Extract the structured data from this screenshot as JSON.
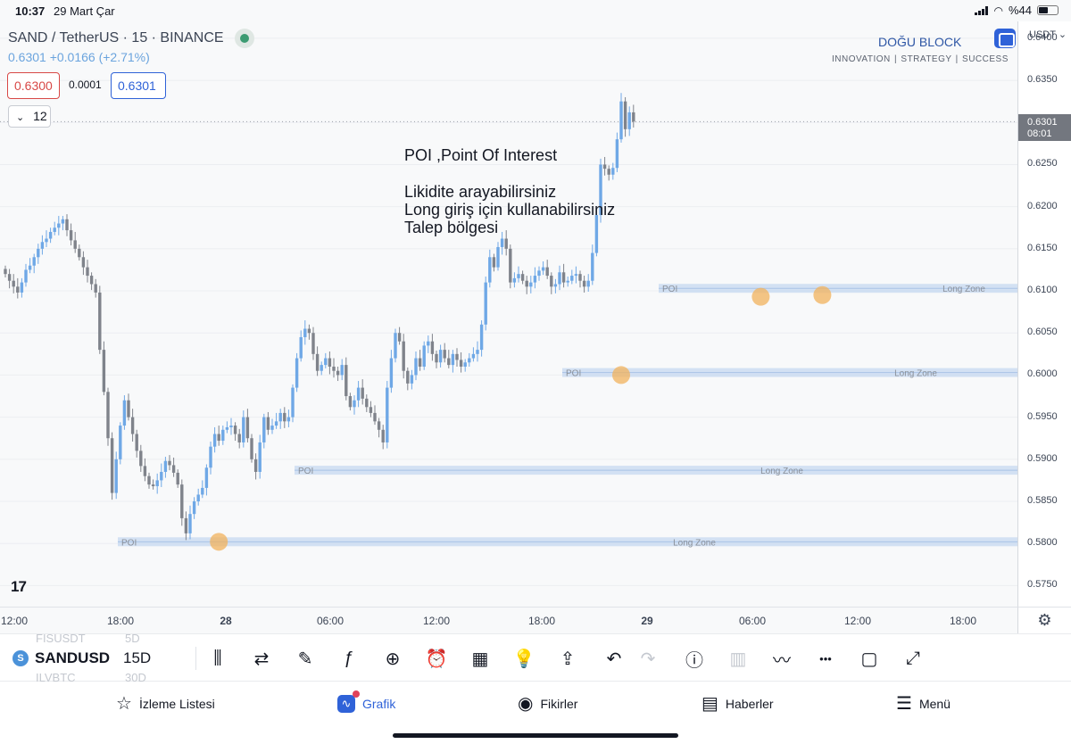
{
  "status_bar": {
    "time": "10:37",
    "date": "29 Mart Çar",
    "battery": "%44"
  },
  "legend": {
    "title": "SAND / TetherUS · 15 · BINANCE",
    "price_change": "0.6301 +0.0166 (+2.71%)",
    "sell_price": "0.6300",
    "spread": "0.0001",
    "buy_price": "0.6301",
    "indicators_count": "12"
  },
  "brand": {
    "title": "DOĞU BLOCK",
    "tagline": "INNOVATION | STRATEGY | SUCCESS"
  },
  "annotations": {
    "title": "POI ,Point Of Interest",
    "lines": [
      "Likidite arayabilirsiniz",
      "Long giriş için kullanabilirsiniz",
      "Talep bölgesi"
    ]
  },
  "price_axis": {
    "currency": "USDT",
    "ticks": [
      "0.6400",
      "0.6350",
      "0.6300",
      "0.6250",
      "0.6200",
      "0.6150",
      "0.6100",
      "0.6050",
      "0.6000",
      "0.5950",
      "0.5900",
      "0.5850",
      "0.5800",
      "0.5750"
    ],
    "last_price": "0.6301",
    "countdown": "08:01"
  },
  "time_axis": {
    "labels": [
      {
        "text": "12:00",
        "bold": false
      },
      {
        "text": "18:00",
        "bold": false
      },
      {
        "text": "28",
        "bold": true
      },
      {
        "text": "06:00",
        "bold": false
      },
      {
        "text": "12:00",
        "bold": false
      },
      {
        "text": "18:00",
        "bold": false
      },
      {
        "text": "29",
        "bold": true
      },
      {
        "text": "06:00",
        "bold": false
      },
      {
        "text": "12:00",
        "bold": false
      },
      {
        "text": "18:00",
        "bold": false
      }
    ]
  },
  "zones": [
    {
      "left_label": "POI",
      "label": "Long Zone",
      "price": 0.5802
    },
    {
      "left_label": "POI",
      "label": "Long Zone",
      "price": 0.5887
    },
    {
      "left_label": "POI",
      "label": "Long Zone",
      "price": 0.6003
    },
    {
      "left_label": "POI",
      "label": "Long Zone",
      "price": 0.6103
    }
  ],
  "toolbar": {
    "ghost_symbols": [
      "FISUSDT",
      "ILVBTC"
    ],
    "ghost_intervals": [
      "5D",
      "30D"
    ],
    "symbol_badge": "S",
    "symbol": "SANDUSD",
    "interval": "15D",
    "tools": [
      {
        "name": "candle-type-icon",
        "glyph": "⫼",
        "enabled": true
      },
      {
        "name": "compare-icon",
        "glyph": "⇄",
        "enabled": true
      },
      {
        "name": "drawing-pen-icon",
        "glyph": "✎",
        "enabled": true
      },
      {
        "name": "indicators-fx-icon",
        "glyph": "ƒ",
        "enabled": true
      },
      {
        "name": "add-icon",
        "glyph": "⊕",
        "enabled": true
      },
      {
        "name": "alert-clock-icon",
        "glyph": "⏰",
        "enabled": true
      },
      {
        "name": "templates-grid-icon",
        "glyph": "▦",
        "enabled": true
      },
      {
        "name": "ideas-bulb-icon",
        "glyph": "💡",
        "enabled": true
      },
      {
        "name": "share-icon",
        "glyph": "⇪",
        "enabled": true
      },
      {
        "name": "undo-icon",
        "glyph": "↶",
        "enabled": true
      },
      {
        "name": "redo-icon",
        "glyph": "↷",
        "enabled": false
      },
      {
        "name": "info-icon",
        "glyph": "ⓘ",
        "enabled": true
      },
      {
        "name": "volume-bars-icon",
        "glyph": "▥",
        "enabled": false
      },
      {
        "name": "line-tool-icon",
        "glyph": "〰",
        "enabled": true
      },
      {
        "name": "more-icon",
        "glyph": "•••",
        "enabled": true
      },
      {
        "name": "rectangle-icon",
        "glyph": "▢",
        "enabled": true
      },
      {
        "name": "fullscreen-icon",
        "glyph": "⤢",
        "enabled": true
      }
    ]
  },
  "bottom_nav": [
    {
      "label": "İzleme Listesi",
      "glyph": "☆",
      "active": false
    },
    {
      "label": "Grafik",
      "glyph": "∿",
      "active": true
    },
    {
      "label": "Fikirler",
      "glyph": "◉",
      "active": false
    },
    {
      "label": "Haberler",
      "glyph": "▤",
      "active": false
    },
    {
      "label": "Menü",
      "glyph": "☰",
      "active": false
    }
  ],
  "chart_data": {
    "type": "candlestick",
    "interval": "15m",
    "symbol": "SAND/USDT",
    "ylim": [
      0.5725,
      0.642
    ],
    "colors": {
      "up": "#6fa8e6",
      "down": "#7f838b",
      "zone": "#bfd4ef",
      "marker": "#f2b25c"
    },
    "close_series": [
      0.612,
      0.6112,
      0.6105,
      0.6098,
      0.611,
      0.6125,
      0.613,
      0.614,
      0.615,
      0.6158,
      0.6162,
      0.617,
      0.6175,
      0.618,
      0.6185,
      0.6172,
      0.616,
      0.615,
      0.614,
      0.6128,
      0.6118,
      0.6108,
      0.6098,
      0.603,
      0.598,
      0.5925,
      0.586,
      0.59,
      0.594,
      0.597,
      0.595,
      0.593,
      0.591,
      0.5892,
      0.588,
      0.587,
      0.5868,
      0.5875,
      0.5885,
      0.5898,
      0.5893,
      0.5884,
      0.587,
      0.583,
      0.5812,
      0.5835,
      0.585,
      0.5858,
      0.5866,
      0.589,
      0.5915,
      0.593,
      0.5922,
      0.5935,
      0.5938,
      0.594,
      0.593,
      0.592,
      0.595,
      0.5925,
      0.59,
      0.5885,
      0.592,
      0.595,
      0.5935,
      0.594,
      0.5945,
      0.5955,
      0.5945,
      0.595,
      0.5985,
      0.602,
      0.6045,
      0.6055,
      0.605,
      0.6025,
      0.6005,
      0.6012,
      0.602,
      0.601,
      0.6005,
      0.6,
      0.6012,
      0.5975,
      0.5962,
      0.597,
      0.5985,
      0.5972,
      0.5962,
      0.5955,
      0.5945,
      0.5935,
      0.592,
      0.5985,
      0.602,
      0.605,
      0.604,
      0.6005,
      0.599,
      0.6,
      0.602,
      0.601,
      0.6035,
      0.604,
      0.6025,
      0.6015,
      0.603,
      0.602,
      0.6012,
      0.6025,
      0.6018,
      0.601,
      0.6015,
      0.602,
      0.6025,
      0.603,
      0.606,
      0.611,
      0.614,
      0.6128,
      0.6152,
      0.6162,
      0.615,
      0.611,
      0.6115,
      0.612,
      0.6112,
      0.6105,
      0.611,
      0.6118,
      0.6124,
      0.6128,
      0.6118,
      0.6105,
      0.6108,
      0.6122,
      0.611,
      0.6112,
      0.6118,
      0.612,
      0.6112,
      0.6105,
      0.6112,
      0.6145,
      0.619,
      0.625,
      0.6245,
      0.6238,
      0.6246,
      0.628,
      0.6325,
      0.6292,
      0.6312,
      0.6301
    ],
    "markers": [
      {
        "i": 52,
        "price": 0.5802
      },
      {
        "i": 150,
        "price": 0.6
      },
      {
        "i": 184,
        "price": 0.6093
      },
      {
        "i": 199,
        "price": 0.6095
      }
    ]
  }
}
